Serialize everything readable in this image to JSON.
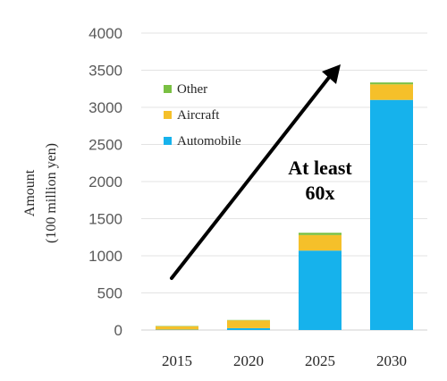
{
  "chart_data": {
    "type": "bar",
    "stacked": true,
    "categories": [
      "2015",
      "2020",
      "2025",
      "2030"
    ],
    "series": [
      {
        "name": "Automobile",
        "color": "#16b2ec",
        "values": [
          5,
          25,
          1070,
          3100
        ]
      },
      {
        "name": "Aircraft",
        "color": "#f5c02a",
        "values": [
          45,
          105,
          210,
          210
        ]
      },
      {
        "name": "Other",
        "color": "#7ac043",
        "values": [
          5,
          5,
          30,
          25
        ]
      }
    ],
    "ylabel_line1": "Amount",
    "ylabel_line2": "(100 million yen)",
    "ylim": [
      0,
      4000
    ],
    "yticks": [
      "0",
      "500",
      "1000",
      "1500",
      "2000",
      "2500",
      "3000",
      "3500",
      "4000"
    ],
    "grid": true,
    "legend_position": "top-left",
    "annotation": {
      "line1": "At least",
      "line2": "60x"
    }
  }
}
